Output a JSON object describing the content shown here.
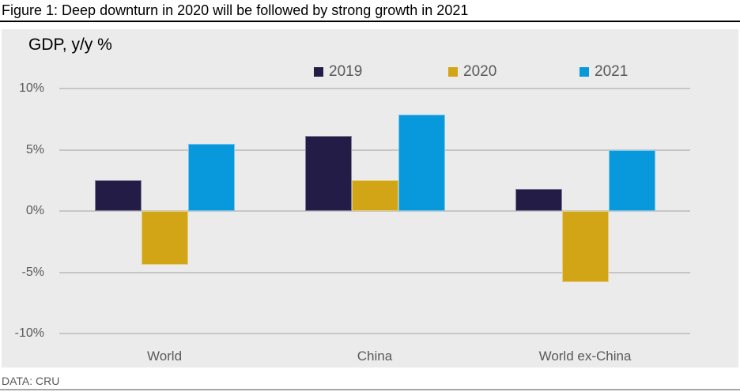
{
  "figure": {
    "title": "Figure 1: Deep downturn in 2020 will be followed by strong growth in 2021",
    "source": "DATA: CRU"
  },
  "chart_data": {
    "type": "bar",
    "title": "GDP, y/y %",
    "ylabel": "GDP, y/y %",
    "xlabel": "",
    "categories": [
      "World",
      "China",
      "World ex-China"
    ],
    "series": [
      {
        "name": "2019",
        "color": "#221C46",
        "values": [
          2.5,
          6.1,
          1.8
        ]
      },
      {
        "name": "2020",
        "color": "#D2A517",
        "values": [
          -4.4,
          2.5,
          -5.8
        ]
      },
      {
        "name": "2021",
        "color": "#0899DC",
        "values": [
          5.5,
          7.9,
          5.0
        ]
      }
    ],
    "ylim": [
      -10,
      10
    ],
    "yticks": [
      10,
      5,
      0,
      -5,
      -10
    ],
    "ytick_labels": [
      "10%",
      "5%",
      "0%",
      "-5%",
      "-10%"
    ],
    "grid": true,
    "legend_position": "top"
  },
  "colors": {
    "panel_bg": "#EBEBEB",
    "gridline": "#C6C6C6",
    "axis_text": "#595959",
    "title_text": "#000000",
    "title_rule": "#000000",
    "bottom_rule": "#A6A6A6"
  }
}
